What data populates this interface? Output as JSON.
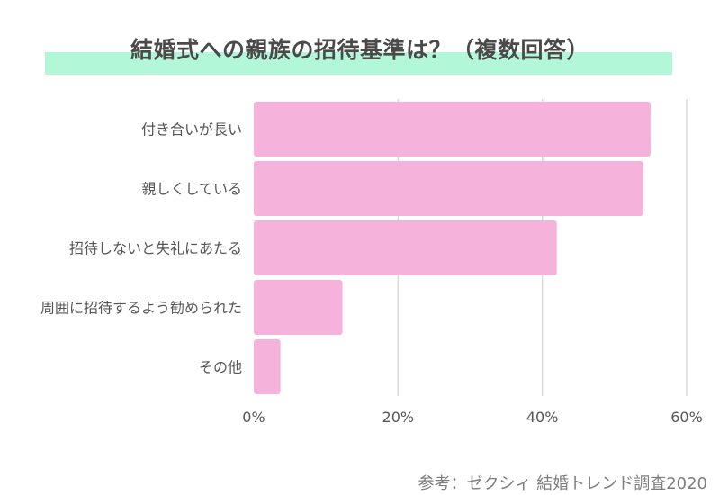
{
  "page": {
    "title": "結婚式への親族の招待基準は？（複数回答）",
    "source": "参考：ゼクシィ 結婚トレンド調査2020"
  },
  "chart_data": {
    "type": "bar",
    "orientation": "horizontal",
    "categories": [
      "付き合いが長い",
      "親しくしている",
      "招待しないと失礼にあたる",
      "周囲に招待するよう勧められた",
      "その他"
    ],
    "values": [
      55,
      54,
      42,
      12.3,
      3.7
    ],
    "xlim": [
      0,
      60
    ],
    "xticks": [
      0,
      20,
      40,
      60
    ],
    "xtick_labels": [
      "0%",
      "20%",
      "40%",
      "60%"
    ],
    "grid": true,
    "bar_color": "#f5b3dc",
    "grid_color": "#d9d9d9",
    "label_color": "#555555",
    "title_band_color": "#b3f7d9"
  }
}
